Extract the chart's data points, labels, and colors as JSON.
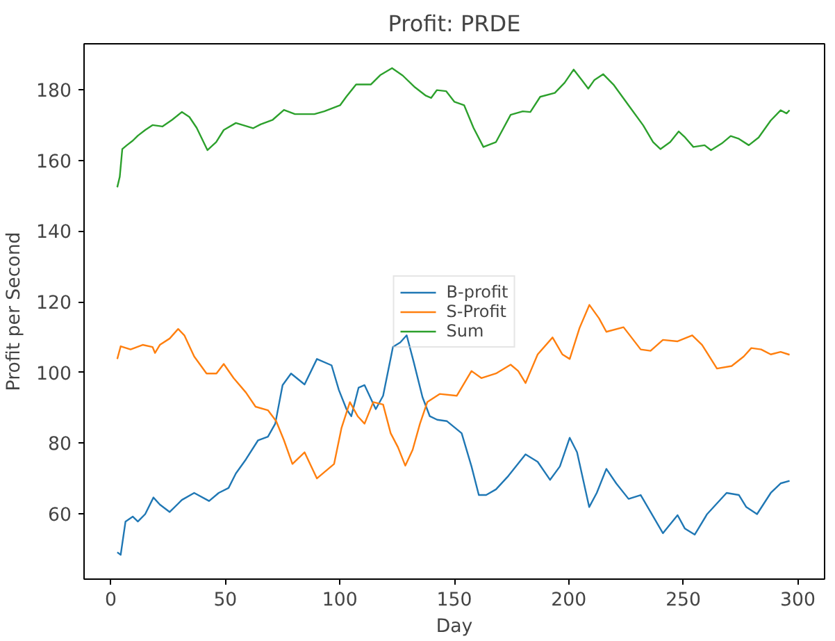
{
  "chart_data": {
    "type": "line",
    "title": "Profit: PRDE",
    "xlabel": "Day",
    "ylabel": "Profit per Second",
    "xlim": [
      -11.7,
      311.7
    ],
    "ylim": [
      41.5,
      193
    ],
    "xticks": [
      0,
      50,
      100,
      150,
      200,
      250,
      300
    ],
    "yticks": [
      60,
      80,
      100,
      120,
      140,
      160,
      180
    ],
    "grid": false,
    "legend": "center",
    "series": [
      {
        "name": "B-profit",
        "color": "#1f77b4",
        "x": [
          2.8,
          4.3,
          6.4,
          9.6,
          11.8,
          15,
          18.6,
          21.4,
          25.7,
          31,
          36.4,
          42.9,
          47.1,
          51.4,
          54.6,
          59,
          64.3,
          68.6,
          71.8,
          75,
          78.7,
          84.6,
          90,
          96.4,
          99.6,
          102.9,
          105,
          108.2,
          110.8,
          115.7,
          118.9,
          123.2,
          126.4,
          129.2,
          132.2,
          136.1,
          139.3,
          142.5,
          146.8,
          153.2,
          157.5,
          160.7,
          163.9,
          168.2,
          173.6,
          181.1,
          186.4,
          191.8,
          196.1,
          200.4,
          203.6,
          208.9,
          212.2,
          216.4,
          220.7,
          226.1,
          231.4,
          235.7,
          241.1,
          247.5,
          250.7,
          255,
          260.4,
          268.9,
          274.3,
          277.5,
          282.2,
          288.2,
          292.5,
          296.4
        ],
        "values": [
          49.1,
          48.4,
          57.8,
          59.2,
          57.8,
          59.9,
          64.6,
          62.6,
          60.5,
          63.9,
          65.9,
          63.6,
          65.9,
          67.3,
          71.4,
          75.4,
          80.8,
          81.8,
          85.5,
          96.4,
          99.7,
          96.6,
          103.8,
          102,
          95,
          89.6,
          87.6,
          95.7,
          96.4,
          89.6,
          93.4,
          107.2,
          108.5,
          110.5,
          103.1,
          93,
          87.6,
          86.6,
          86.2,
          82.8,
          73.4,
          65.3,
          65.3,
          66.9,
          70.7,
          76.8,
          74.7,
          69.6,
          73.4,
          81.5,
          77.4,
          61.9,
          65.9,
          72.7,
          68.6,
          64.2,
          65.3,
          60.5,
          54.5,
          59.6,
          55.8,
          54.1,
          59.9,
          65.9,
          65.3,
          61.9,
          59.9,
          65.9,
          68.6,
          69.3
        ]
      },
      {
        "name": "S-Profit",
        "color": "#ff7f0e",
        "x": [
          2.8,
          4.3,
          8.6,
          13.9,
          18.2,
          19.3,
          21.4,
          25.7,
          29.4,
          32.1,
          36.4,
          41.8,
          46.1,
          49.3,
          53.6,
          59,
          63.2,
          68.6,
          72.2,
          75.6,
          79.3,
          84.6,
          90,
          97.5,
          100.7,
          104.4,
          107.8,
          110.8,
          114.6,
          118.9,
          122.2,
          125.4,
          128.6,
          131.8,
          135,
          138.2,
          143.6,
          151.1,
          157.5,
          161.8,
          168.2,
          174.6,
          177.9,
          181.1,
          186.4,
          192.9,
          197.2,
          200.4,
          204.7,
          209,
          213.2,
          216.4,
          223.9,
          231.4,
          235.7,
          241.1,
          247.5,
          253.9,
          258.2,
          264.7,
          271.1,
          276.4,
          279.7,
          284,
          288.2,
          292.5,
          296.4
        ],
        "values": [
          103.8,
          107.4,
          106.5,
          107.8,
          107.2,
          105.5,
          107.8,
          109.6,
          112.3,
          110.5,
          104.5,
          99.7,
          99.7,
          102.4,
          98.4,
          94.3,
          90.3,
          89.3,
          86.2,
          80.8,
          74.1,
          77.4,
          70,
          74.1,
          84.2,
          91.6,
          87.6,
          85.5,
          91.6,
          90.9,
          82.8,
          78.8,
          73.6,
          78.1,
          85.5,
          91.6,
          93.9,
          93.4,
          100.4,
          98.4,
          99.7,
          102.2,
          100.4,
          97,
          105.1,
          109.9,
          105.1,
          103.8,
          112.6,
          119.1,
          115.3,
          111.5,
          112.8,
          106.5,
          106.1,
          109.2,
          108.8,
          110.5,
          107.8,
          101.1,
          101.8,
          104.5,
          106.9,
          106.5,
          105.1,
          105.8,
          105
        ]
      },
      {
        "name": "Sum",
        "color": "#2ca02c",
        "x": [
          2.8,
          3.9,
          5,
          7,
          9.6,
          11.8,
          15,
          18.2,
          22.5,
          26.8,
          31,
          34.3,
          37.5,
          42.2,
          46,
          49.3,
          54.6,
          62.1,
          65.4,
          70.7,
          75.6,
          80.4,
          88.9,
          93.2,
          100.1,
          102.8,
          107.1,
          113.6,
          117.8,
          122.8,
          127.5,
          132.8,
          137.6,
          139.9,
          142.4,
          146.4,
          150,
          154.3,
          158.4,
          162.7,
          168.2,
          174.6,
          179.9,
          183.2,
          187.5,
          193.9,
          198.2,
          202.1,
          205.7,
          208.5,
          211.1,
          215,
          219.7,
          226.1,
          232.5,
          236.8,
          240,
          244.3,
          248,
          250.8,
          254.4,
          259.3,
          262.1,
          266.8,
          270.7,
          274.3,
          278.6,
          282.9,
          288.2,
          292.5,
          295.1,
          296.4
        ],
        "values": [
          152.4,
          155.4,
          163.2,
          164.3,
          165.6,
          167,
          168.6,
          170,
          169.6,
          171.5,
          173.7,
          172.3,
          169.2,
          162.9,
          165.2,
          168.6,
          170.6,
          169.1,
          170.2,
          171.5,
          174.3,
          173.1,
          173.1,
          173.9,
          175.6,
          178,
          181.5,
          181.5,
          184.2,
          186.1,
          184,
          180.7,
          178.3,
          177.7,
          179.9,
          179.6,
          176.6,
          175.6,
          169.2,
          163.8,
          165.2,
          172.9,
          173.9,
          173.7,
          178,
          179.1,
          182,
          185.7,
          182.7,
          180.3,
          182.7,
          184.4,
          181.3,
          175.6,
          169.9,
          165.2,
          163.2,
          165.2,
          168.2,
          166.5,
          163.8,
          164.3,
          162.9,
          164.8,
          166.9,
          166.1,
          164.3,
          166.5,
          171.3,
          174.2,
          173.3,
          174.2
        ]
      }
    ]
  }
}
